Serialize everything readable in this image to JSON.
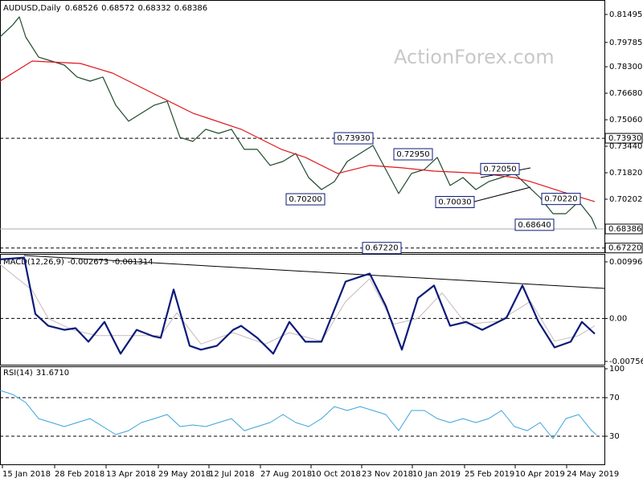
{
  "chart_data": [
    {
      "type": "line",
      "symbol": "AUDUSD,Daily",
      "ohlc": [
        0.68526,
        0.68572,
        0.68332,
        0.68386
      ],
      "watermark": "ActionForex.com",
      "xlim": [
        0,
        376
      ],
      "xticks": [
        {
          "value": 1.5,
          "label": "15 Jan 2018"
        },
        {
          "value": 34,
          "label": "28 Feb 2018"
        },
        {
          "value": 66,
          "label": "13 Apr 2018"
        },
        {
          "value": 98.5,
          "label": "29 May 2018"
        },
        {
          "value": 130,
          "label": "12 Jul 2018"
        },
        {
          "value": 162,
          "label": "27 Aug 2018"
        },
        {
          "value": 193.5,
          "label": "10 Oct 2018"
        },
        {
          "value": 225,
          "label": "23 Nov 2018"
        },
        {
          "value": 256.5,
          "label": "10 Jan 2019"
        },
        {
          "value": 289,
          "label": "25 Feb 2019"
        },
        {
          "value": 320.5,
          "label": "10 Apr 2019"
        },
        {
          "value": 352.5,
          "label": "24 May 2019"
        }
      ],
      "ylim": [
        0.66913,
        0.8233
      ],
      "yticks": [
        0.81495,
        0.79785,
        {
          "value": 0.783,
          "label": "0.78300"
        },
        {
          "value": 0.7668,
          "label": "0.76680"
        },
        {
          "value": 0.7506,
          "label": "0.75060"
        },
        {
          "value": 0.7344,
          "label": "0.73440"
        },
        {
          "value": 0.7182,
          "label": "0.71820"
        },
        0.70202
      ],
      "levels": [
        {
          "value": 0.7393,
          "label": "0.73930",
          "style": "dashed"
        },
        {
          "value": 0.68386,
          "label": "0.68386",
          "style": "solid"
        },
        {
          "value": 0.6722,
          "label": "0.67220",
          "style": "dashed"
        }
      ],
      "annotations": [
        {
          "value": 0.7393,
          "label": "0.73930",
          "x": 220
        },
        {
          "value": 0.7295,
          "label": "0.72950",
          "x": 257
        },
        {
          "value": 0.7205,
          "label": "0.72050",
          "x": 311
        },
        {
          "value": 0.702,
          "label": "0.70200",
          "x": 190
        },
        {
          "value": 0.7003,
          "label": "0.70030",
          "x": 283
        },
        {
          "value": 0.7022,
          "label": "0.70220",
          "x": 349
        },
        {
          "value": 0.6864,
          "label": "0.68640",
          "x": 332.5
        },
        {
          "value": 0.6722,
          "label": "0.67220",
          "x": 237.5
        }
      ],
      "series": [
        {
          "color": "#1f4a2c",
          "width": 1.2,
          "x": [
            0,
            8,
            12,
            16,
            24,
            32,
            40,
            48,
            56,
            64,
            72,
            80,
            88,
            96,
            104,
            112,
            120,
            128,
            136,
            144,
            152,
            160,
            168,
            176,
            184,
            192,
            200,
            208,
            216,
            224,
            232,
            240,
            248,
            256,
            264,
            272,
            280,
            288,
            296,
            304,
            312,
            320,
            328,
            336,
            344,
            352,
            360,
            368,
            371
          ],
          "values": [
            0.8012,
            0.8086,
            0.8135,
            0.8012,
            0.7889,
            0.7865,
            0.784,
            0.7767,
            0.7742,
            0.7767,
            0.7595,
            0.7497,
            0.7546,
            0.7595,
            0.7619,
            0.7398,
            0.7374,
            0.7448,
            0.7423,
            0.7448,
            0.7325,
            0.7325,
            0.7227,
            0.7251,
            0.73,
            0.7153,
            0.7079,
            0.7128,
            0.7251,
            0.73,
            0.7349,
            0.7202,
            0.7055,
            0.7178,
            0.7202,
            0.7276,
            0.7104,
            0.7153,
            0.7079,
            0.7128,
            0.7153,
            0.7178,
            0.7104,
            0.703,
            0.6932,
            0.6932,
            0.7006,
            0.6907,
            0.68386
          ]
        },
        {
          "color": "#e0161b",
          "width": 1.2,
          "x": [
            0,
            20,
            50,
            70,
            100,
            120,
            150,
            175,
            190,
            210,
            230,
            250,
            270,
            300,
            320,
            330,
            350,
            370
          ],
          "values": [
            0.7742,
            0.7865,
            0.785,
            0.7791,
            0.7644,
            0.7546,
            0.7448,
            0.7325,
            0.7276,
            0.7178,
            0.7227,
            0.7212,
            0.7192,
            0.7178,
            0.7153,
            0.7128,
            0.7065,
            0.7006
          ]
        }
      ]
    },
    {
      "type": "line",
      "title": "MACD(12,26,9)",
      "readings": [
        -0.002673,
        -0.001314
      ],
      "xlim": [
        0,
        376
      ],
      "ylim": [
        -0.00828,
        0.01123
      ],
      "yticks": [
        0.009964,
        {
          "value": 0,
          "label": "0.00"
        },
        -0.00756
      ],
      "levels": [
        0
      ],
      "series": [
        {
          "color": "#c9b9b9",
          "width": 1,
          "x": [
            0,
            20,
            30,
            45,
            60,
            80,
            100,
            110,
            125,
            145,
            165,
            180,
            200,
            215,
            230,
            245,
            260,
            275,
            290,
            310,
            330,
            345,
            360,
            370
          ],
          "values": [
            0.0095,
            0.005,
            0,
            -0.002,
            -0.003,
            -0.003,
            -0.003,
            0.001,
            -0.0045,
            -0.0025,
            -0.0045,
            -0.0025,
            -0.004,
            0.003,
            0.007,
            -0.001,
            0,
            0.0045,
            -0.001,
            -0.0005,
            0.003,
            -0.004,
            -0.003,
            -0.0013
          ]
        },
        {
          "color": "#0a1a7a",
          "width": 2.2,
          "x": [
            0,
            15,
            22,
            30,
            40,
            47,
            55,
            65,
            75,
            85,
            95,
            100,
            108,
            118,
            125,
            135,
            140,
            145,
            150,
            160,
            170,
            180,
            190,
            200,
            215,
            230,
            240,
            250,
            260,
            270,
            280,
            290,
            300,
            315,
            325,
            335,
            345,
            355,
            362,
            370
          ],
          "values": [
            0.0104,
            0.0107,
            0.0008,
            -0.0013,
            -0.002,
            -0.0017,
            -0.0041,
            -0.0006,
            -0.0062,
            -0.002,
            -0.0031,
            -0.0034,
            0.0051,
            -0.0048,
            -0.0055,
            -0.0048,
            -0.0034,
            -0.002,
            -0.0013,
            -0.0034,
            -0.0062,
            -0.0006,
            -0.0041,
            -0.0041,
            0.0065,
            0.0079,
            0.0022,
            -0.0055,
            0.0036,
            0.0058,
            -0.0013,
            -0.0006,
            -0.002,
            0.0001,
            0.0058,
            -0.0006,
            -0.0051,
            -0.0041,
            -0.0006,
            -0.0027
          ]
        }
      ]
    },
    {
      "type": "line",
      "title": "RSI(14)",
      "reading": {
        "value": 31.671,
        "label": "31.6710"
      },
      "xlim": [
        0,
        376
      ],
      "ylim": [
        0,
        101.7
      ],
      "yticks": [
        100,
        70,
        30
      ],
      "levels": [
        70,
        30
      ],
      "series": [
        {
          "color": "#3ba3d8",
          "width": 1,
          "x": [
            0,
            8,
            16,
            24,
            32,
            40,
            48,
            56,
            64,
            72,
            80,
            88,
            96,
            104,
            112,
            120,
            128,
            136,
            144,
            152,
            160,
            168,
            176,
            184,
            192,
            200,
            208,
            216,
            224,
            232,
            240,
            248,
            256,
            264,
            272,
            280,
            288,
            296,
            304,
            312,
            320,
            328,
            336,
            344,
            352,
            360,
            368,
            371
          ],
          "values": [
            77.5,
            73.3,
            65,
            48.3,
            44.2,
            40,
            44.2,
            48.3,
            40,
            31.7,
            35.8,
            44.2,
            48.3,
            52.5,
            40,
            41.7,
            40,
            44.2,
            48.3,
            35.8,
            40,
            44.2,
            52.5,
            44.2,
            40,
            48.3,
            60.8,
            56.7,
            60.8,
            56.7,
            52.5,
            35.8,
            56.7,
            56.7,
            48.3,
            44.2,
            48.3,
            44.2,
            48.3,
            56.7,
            40,
            35.8,
            44.2,
            27.5,
            48.3,
            52.5,
            35.8,
            31.7
          ]
        }
      ]
    }
  ]
}
